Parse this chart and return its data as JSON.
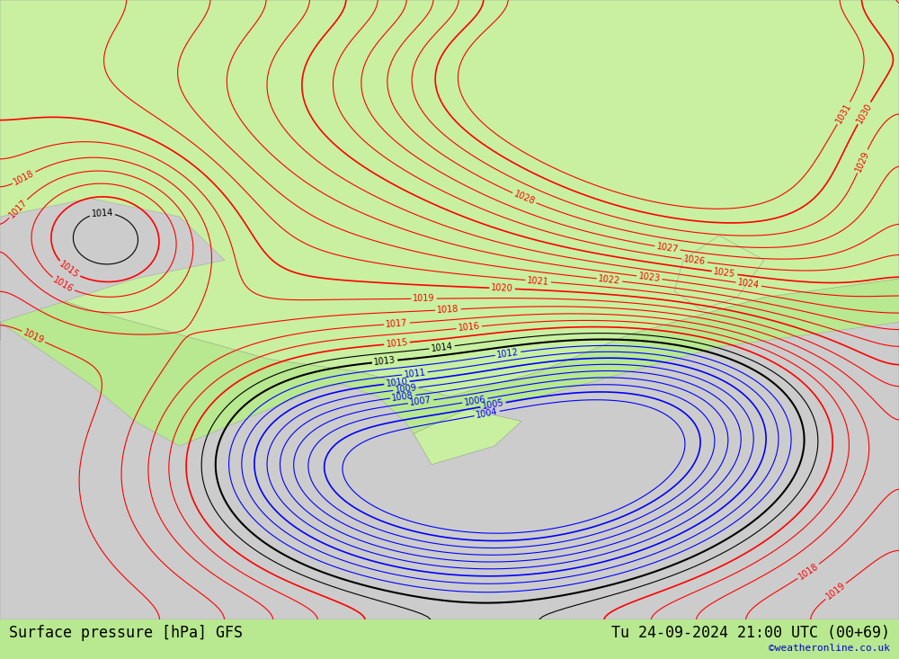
{
  "title_left": "Surface pressure [hPa] GFS",
  "title_right": "Tu 24-09-2024 21:00 UTC (00+69)",
  "watermark": "©weatheronline.co.uk",
  "background_color": "#c8f0a0",
  "land_color": "#c8f0a0",
  "sea_color": "#d8d8d8",
  "contour_color_red": "#ff0000",
  "contour_color_black": "#000000",
  "contour_color_blue": "#0000ff",
  "figsize": [
    10.0,
    7.33
  ],
  "dpi": 100
}
